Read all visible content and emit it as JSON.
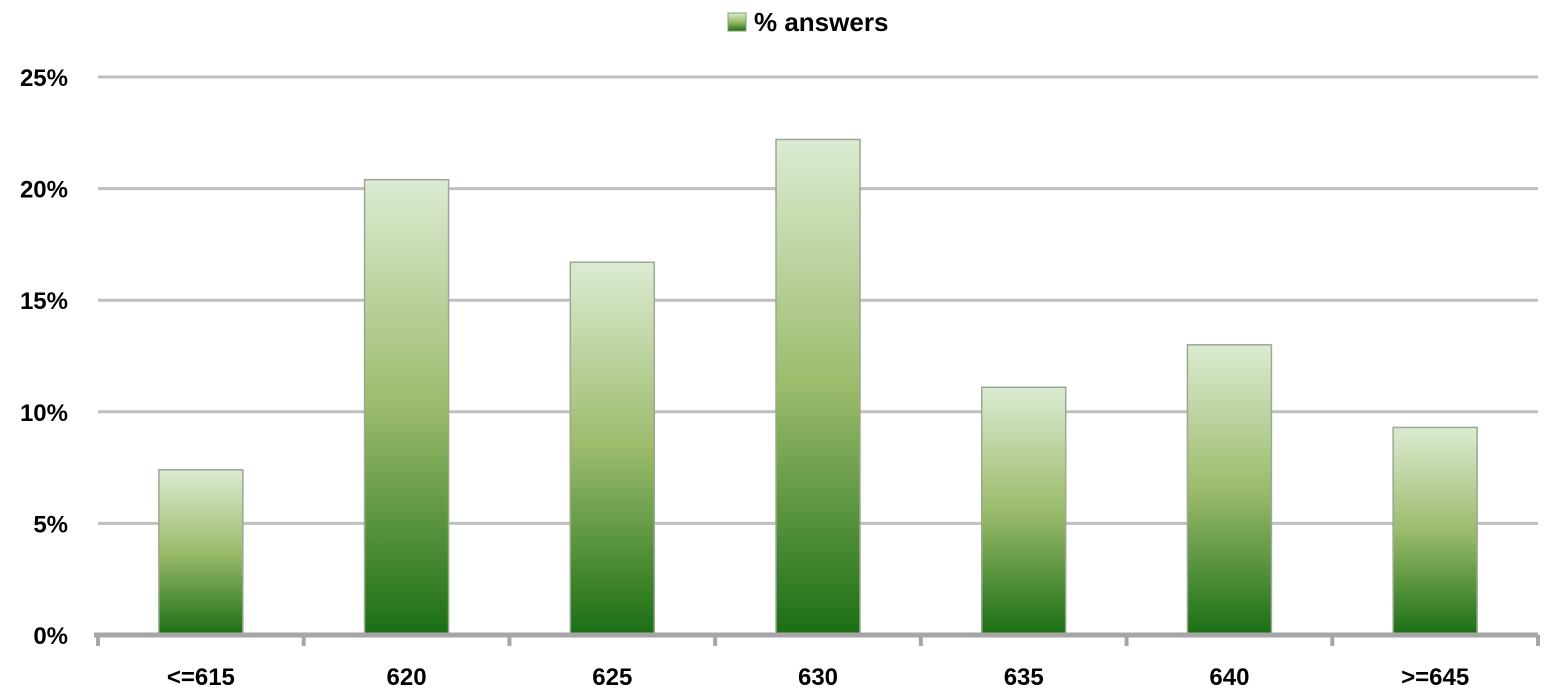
{
  "chart_data": {
    "type": "bar",
    "categories": [
      "<=615",
      "620",
      "625",
      "630",
      "635",
      "640",
      ">=645"
    ],
    "series": [
      {
        "name": "% answers",
        "values": [
          7.4,
          20.4,
          16.7,
          22.2,
          11.1,
          13.0,
          9.3
        ]
      }
    ],
    "yticks": [
      "0%",
      "5%",
      "10%",
      "15%",
      "20%",
      "25%"
    ],
    "ylim": [
      0,
      25
    ],
    "grid": true,
    "legend": "top-center",
    "colors": {
      "bar_top": "#dcebd2",
      "bar_mid": "#9bbb6b",
      "bar_bottom": "#1a6e14",
      "grid": "#bfbfbf",
      "axis": "#a6a6a6"
    }
  }
}
